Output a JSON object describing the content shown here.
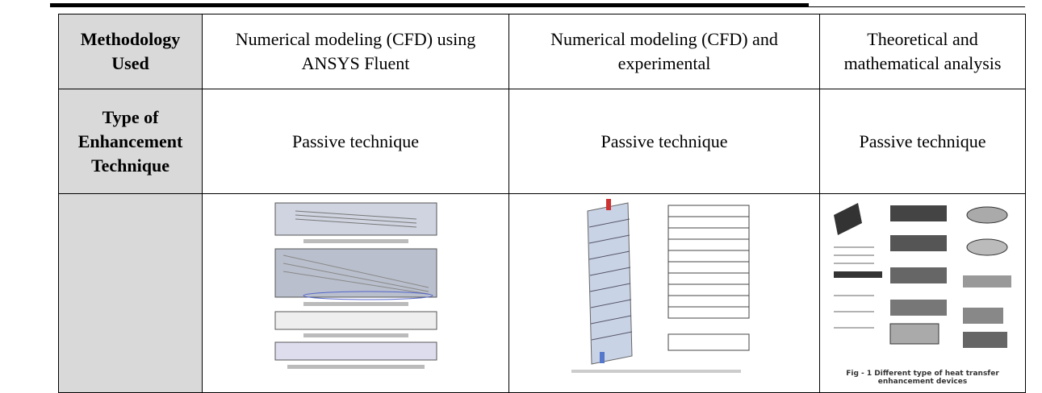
{
  "table": {
    "rows": [
      [
        "Methodology Used",
        "Numerical modeling (CFD) using ANSYS Fluent",
        "Numerical modeling (CFD) and experimental",
        "Theoretical and mathematical analysis"
      ],
      [
        "Type of Enhancement Technique",
        "Passive technique",
        "Passive technique",
        "Passive technique"
      ]
    ],
    "figure_caption": "Fig - 1 Different type of heat transfer enhancement devices"
  }
}
